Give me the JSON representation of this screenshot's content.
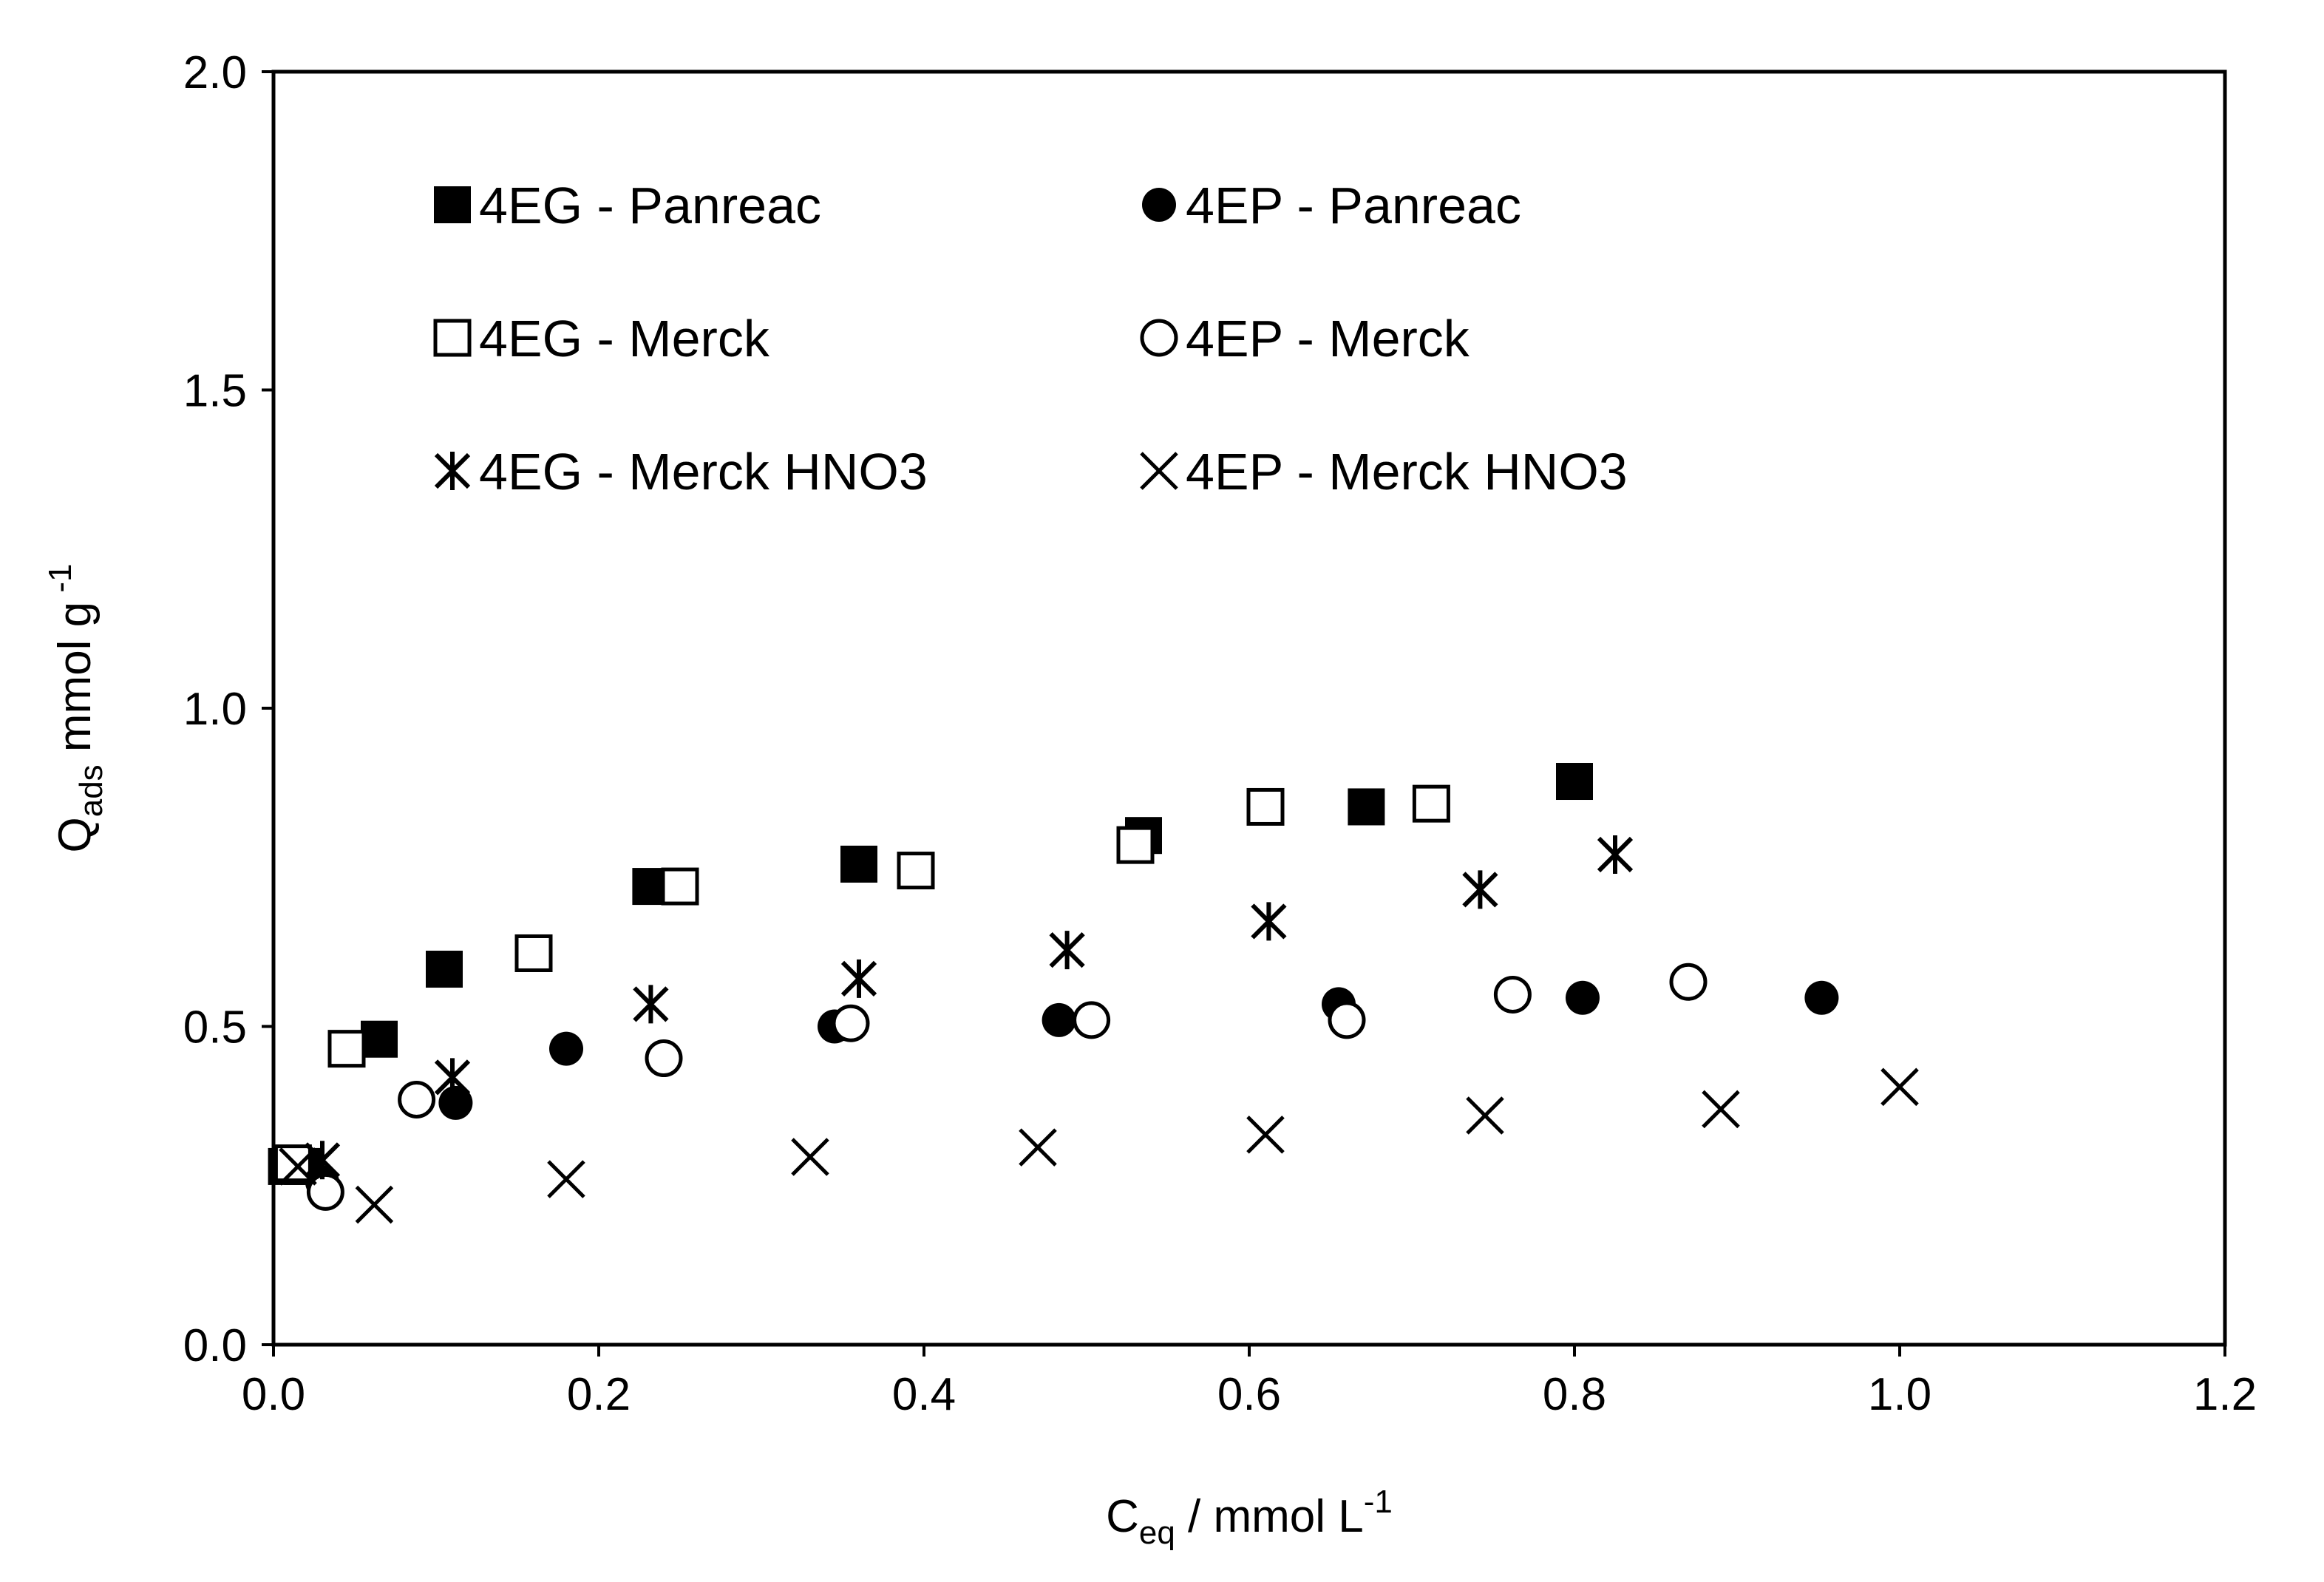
{
  "chart_data": {
    "type": "scatter",
    "title": "",
    "xlabel": {
      "main": "C",
      "sub": "eq",
      "rest": " / mmol  L",
      "sup": "-1"
    },
    "ylabel": {
      "main": "Q",
      "sub": "ads",
      "rest": " mmol g",
      "sup": " -1"
    },
    "xlim": [
      0.0,
      1.2
    ],
    "ylim": [
      0.0,
      2.0
    ],
    "x_ticks": [
      "0.0",
      "0.2",
      "0.4",
      "0.6",
      "0.8",
      "1.0",
      "1.2"
    ],
    "y_ticks": [
      "0.0",
      "0.5",
      "1.0",
      "1.5",
      "2.0"
    ],
    "x_tick_values": [
      0.0,
      0.2,
      0.4,
      0.6,
      0.8,
      1.0,
      1.2
    ],
    "y_tick_values": [
      0.0,
      0.5,
      1.0,
      1.5,
      2.0
    ],
    "grid": false,
    "legend_position": "top-left",
    "series": [
      {
        "name": "4EG - Panreac",
        "marker": "filled-square",
        "x": [
          0.008,
          0.018,
          0.065,
          0.105,
          0.232,
          0.36,
          0.535,
          0.672,
          0.8
        ],
        "y": [
          0.28,
          0.28,
          0.48,
          0.59,
          0.72,
          0.755,
          0.8,
          0.845,
          0.885
        ]
      },
      {
        "name": "4EP - Panreac",
        "marker": "filled-circle",
        "x": [
          0.03,
          0.112,
          0.18,
          0.345,
          0.483,
          0.655,
          0.805,
          0.952
        ],
        "y": [
          0.255,
          0.38,
          0.465,
          0.5,
          0.51,
          0.535,
          0.545,
          0.545
        ]
      },
      {
        "name": "4EG - Merck",
        "marker": "open-square",
        "x": [
          0.012,
          0.045,
          0.16,
          0.25,
          0.395,
          0.53,
          0.61,
          0.712
        ],
        "y": [
          0.285,
          0.465,
          0.615,
          0.72,
          0.745,
          0.785,
          0.845,
          0.85
        ]
      },
      {
        "name": "4EP - Merck",
        "marker": "open-circle",
        "x": [
          0.032,
          0.088,
          0.24,
          0.355,
          0.503,
          0.66,
          0.762,
          0.87
        ],
        "y": [
          0.24,
          0.385,
          0.45,
          0.505,
          0.51,
          0.51,
          0.55,
          0.57
        ]
      },
      {
        "name": "4EG - Merck HNO3",
        "marker": "asterisk",
        "x": [
          0.03,
          0.11,
          0.232,
          0.36,
          0.488,
          0.612,
          0.742,
          0.825
        ],
        "y": [
          0.29,
          0.42,
          0.535,
          0.575,
          0.62,
          0.665,
          0.715,
          0.77
        ]
      },
      {
        "name": "4EP - Merck HNO3",
        "marker": "cross",
        "x": [
          0.015,
          0.062,
          0.18,
          0.33,
          0.47,
          0.61,
          0.745,
          0.89,
          1.0
        ],
        "y": [
          0.28,
          0.22,
          0.26,
          0.295,
          0.31,
          0.33,
          0.36,
          0.37,
          0.405
        ]
      }
    ]
  }
}
